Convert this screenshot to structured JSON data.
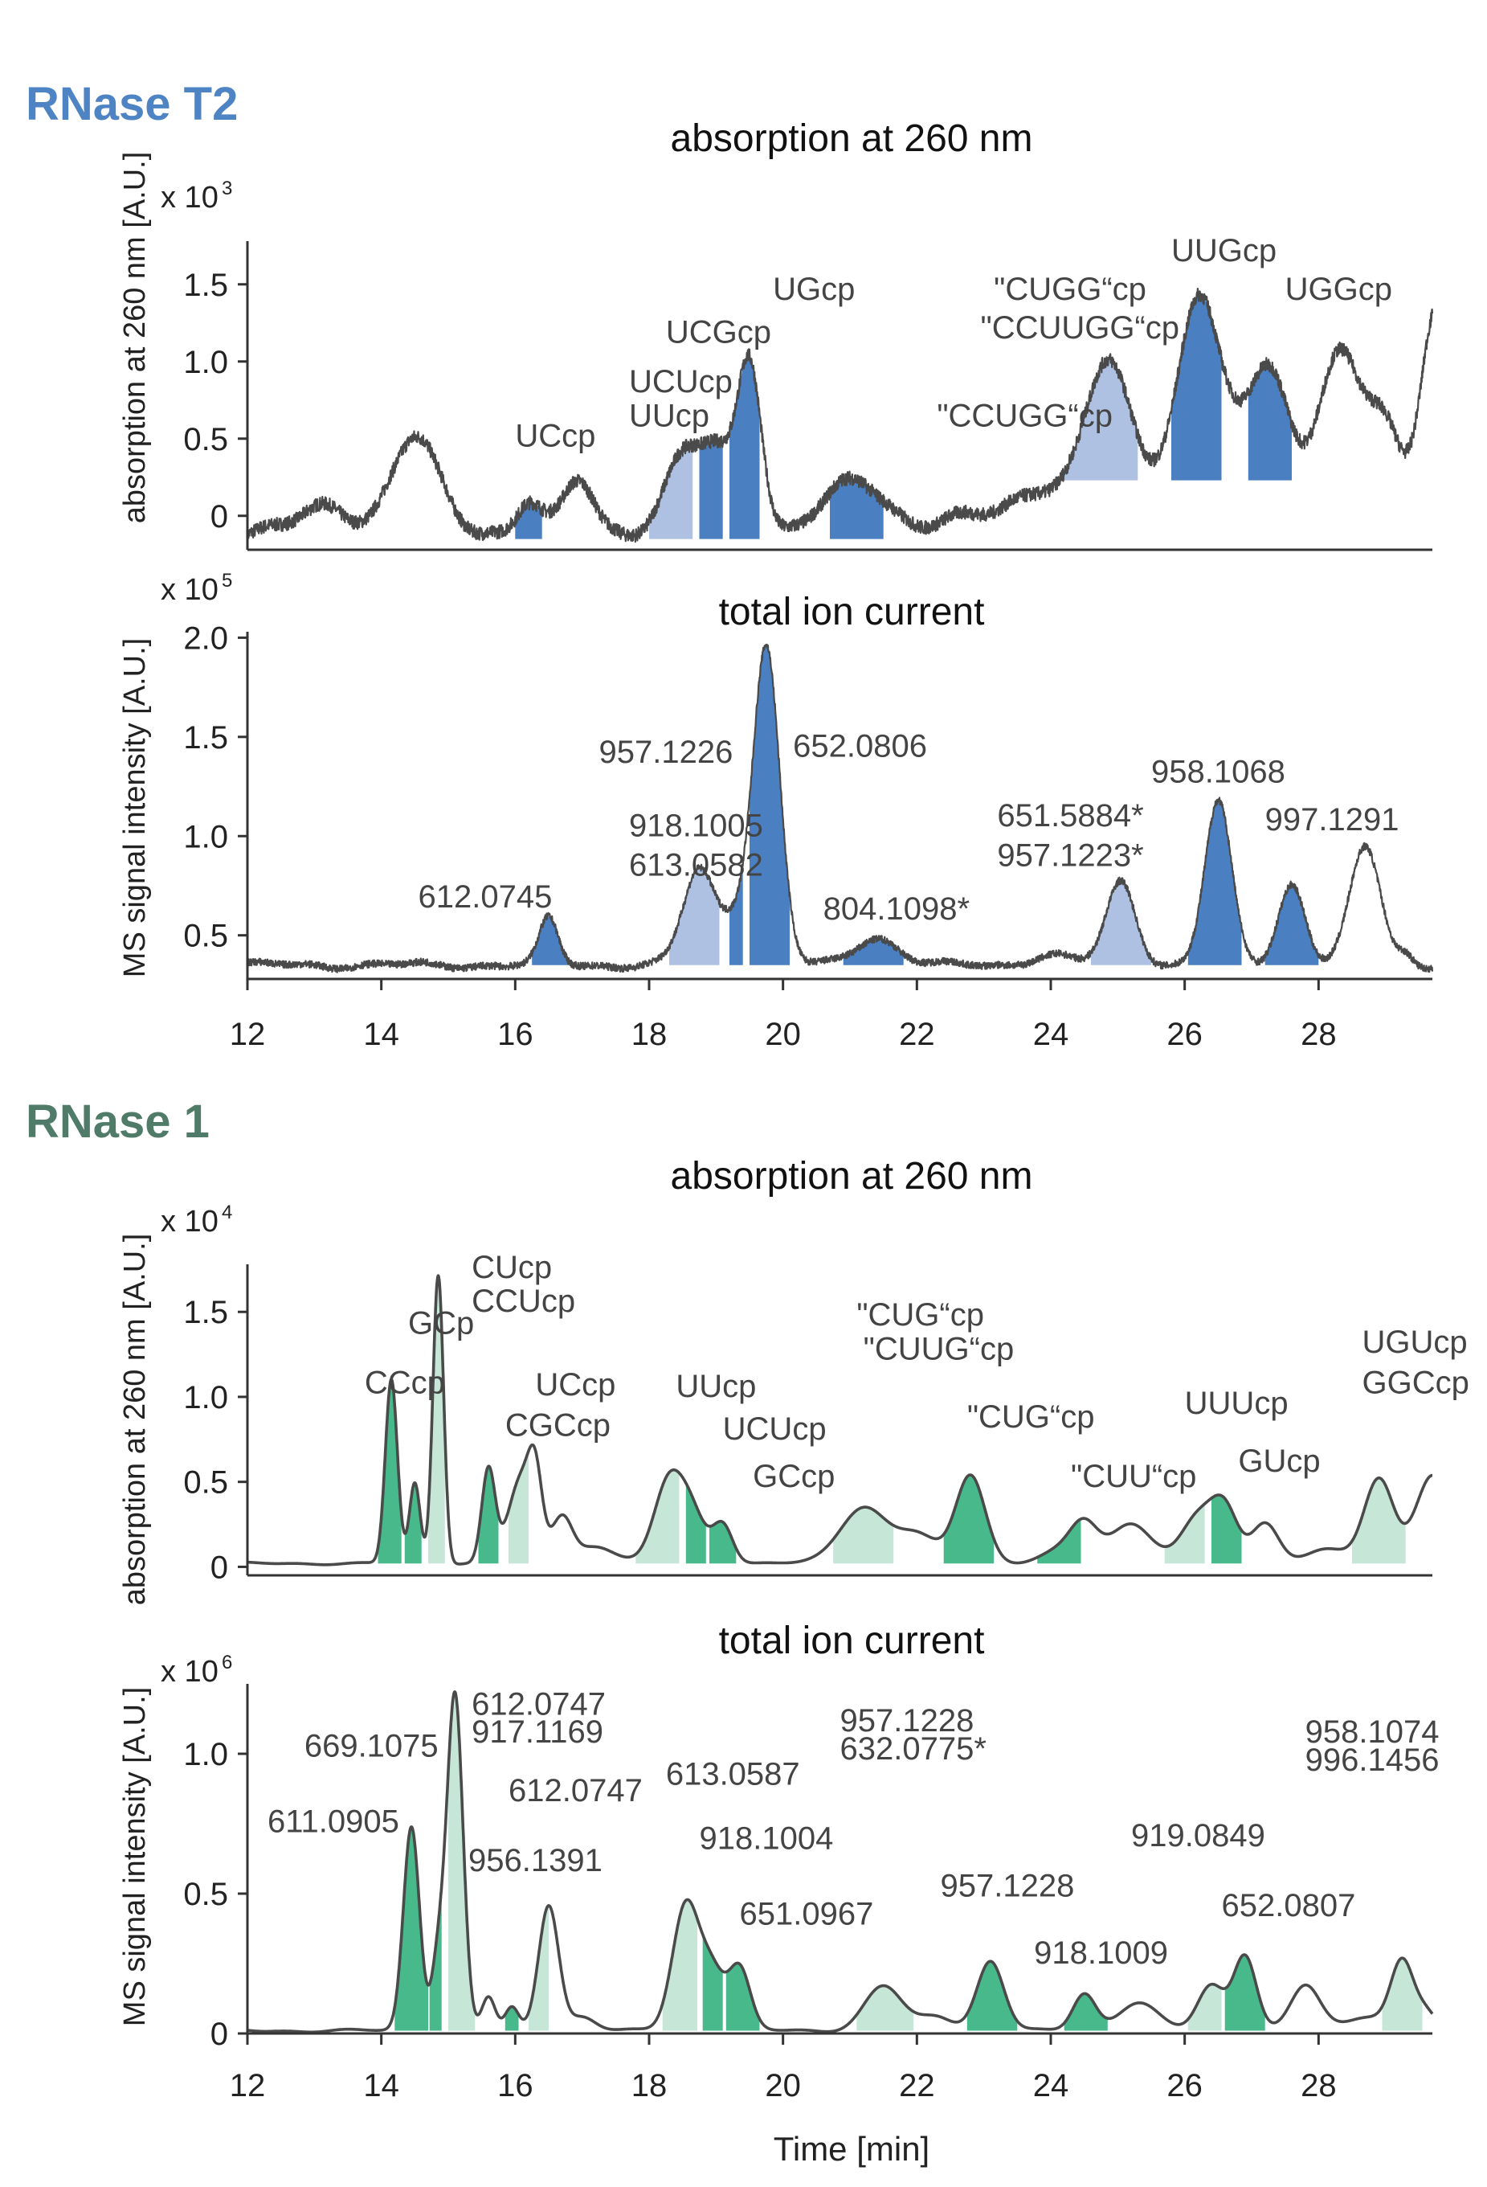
{
  "colors": {
    "t2_title": "#4f84c4",
    "t2_dark": "#4a7fc1",
    "t2_light": "#aec1e3",
    "r1_title": "#4f7b68",
    "r1_dark": "#48b98b",
    "r1_light": "#c6e6d8",
    "trace": "#4a4a4a",
    "axis": "#333333"
  },
  "sections": {
    "t2_title": "RNase T2",
    "r1_title": "RNase 1"
  },
  "xaxis": {
    "label": "Time [min]",
    "ticks": [
      12,
      14,
      16,
      18,
      20,
      22,
      24,
      26,
      28
    ],
    "range": [
      12,
      29.7
    ]
  },
  "chart_data": [
    {
      "type": "line",
      "title": "absorption at 260 nm",
      "ylabel": "absorption at 260 nm [A.U.]",
      "scale": "x 10",
      "scale_exp": "3",
      "ylim": [
        -0.22,
        1.78
      ],
      "yticks": [
        {
          "v": 0,
          "t": "0"
        },
        {
          "v": 0.5,
          "t": "0.5"
        },
        {
          "v": 1.0,
          "t": "1.0"
        },
        {
          "v": 1.5,
          "t": "1.5"
        }
      ],
      "baseline": -0.1,
      "noise": 0.045,
      "wiggle": 0.03,
      "peaks": [
        [
          13.2,
          0.16,
          0.35
        ],
        [
          14.5,
          0.6,
          0.35
        ],
        [
          16.2,
          0.2,
          0.18
        ],
        [
          16.95,
          0.32,
          0.22
        ],
        [
          18.55,
          0.5,
          0.3
        ],
        [
          19.05,
          0.38,
          0.22
        ],
        [
          19.5,
          1.12,
          0.18
        ],
        [
          21.1,
          0.32,
          0.45
        ],
        [
          22.8,
          0.08,
          0.5
        ],
        [
          23.7,
          0.2,
          0.35
        ],
        [
          24.1,
          0.12,
          0.3
        ],
        [
          24.85,
          1.08,
          0.35
        ],
        [
          25.6,
          0.18,
          0.3
        ],
        [
          26.2,
          1.35,
          0.32
        ],
        [
          26.7,
          0.35,
          0.4
        ],
        [
          27.3,
          0.95,
          0.3
        ],
        [
          28.3,
          1.18,
          0.32
        ],
        [
          29.0,
          0.65,
          0.25
        ],
        [
          29.75,
          1.45,
          0.22
        ]
      ],
      "regions": [
        [
          16.0,
          16.4,
          "dark",
          -0.15
        ],
        [
          18.0,
          18.65,
          "light",
          -0.15
        ],
        [
          18.75,
          19.1,
          "dark",
          -0.15
        ],
        [
          19.2,
          19.65,
          "dark",
          -0.15
        ],
        [
          20.7,
          21.5,
          "dark",
          -0.15
        ],
        [
          24.2,
          25.3,
          "light",
          0.23
        ],
        [
          25.8,
          26.55,
          "dark",
          0.23
        ],
        [
          26.95,
          27.6,
          "dark",
          0.23
        ]
      ],
      "annotations": [
        {
          "t": "UCcp",
          "x": 16.0,
          "y": 0.45
        },
        {
          "t": "UCUcp",
          "x": 17.7,
          "y": 0.8
        },
        {
          "t": "UUcp",
          "x": 17.7,
          "y": 0.58
        },
        {
          "t": "UCGcp",
          "x": 18.25,
          "y": 1.12
        },
        {
          "t": "UGcp",
          "x": 19.85,
          "y": 1.4
        },
        {
          "t": "\"CCUGG“cp",
          "x": 22.3,
          "y": 0.58
        },
        {
          "t": "\"CUGG“cp",
          "x": 23.15,
          "y": 1.4
        },
        {
          "t": "\"CCUUGG“cp",
          "x": 22.95,
          "y": 1.15
        },
        {
          "t": "UUGcp",
          "x": 25.8,
          "y": 1.65
        },
        {
          "t": "UGGcp",
          "x": 27.5,
          "y": 1.4
        }
      ]
    },
    {
      "type": "line",
      "title": "total ion current",
      "ylabel": "MS signal intensity [A.U.]",
      "scale": "x 10",
      "scale_exp": "5",
      "ylim": [
        0.28,
        2.03
      ],
      "yticks": [
        {
          "v": 0.5,
          "t": "0.5"
        },
        {
          "v": 1.0,
          "t": "1.0"
        },
        {
          "v": 1.5,
          "t": "1.5"
        },
        {
          "v": 2.0,
          "t": "2.0"
        }
      ],
      "baseline": 0.35,
      "noise": 0.018,
      "wiggle": 0.012,
      "peaks": [
        [
          16.5,
          0.23,
          0.14
        ],
        [
          18.75,
          0.48,
          0.24
        ],
        [
          19.3,
          0.2,
          0.2
        ],
        [
          19.75,
          1.6,
          0.2
        ],
        [
          21.4,
          0.14,
          0.32
        ],
        [
          24.0,
          0.05,
          0.3
        ],
        [
          25.05,
          0.42,
          0.22
        ],
        [
          26.5,
          0.82,
          0.2
        ],
        [
          27.6,
          0.41,
          0.2
        ],
        [
          28.7,
          0.59,
          0.23
        ],
        [
          29.3,
          0.05,
          0.1
        ]
      ],
      "regions": [
        [
          16.25,
          16.8,
          "dark",
          0.35
        ],
        [
          18.3,
          19.05,
          "light",
          0.35
        ],
        [
          19.2,
          19.4,
          "dark",
          0.35
        ],
        [
          19.5,
          20.1,
          "dark",
          0.35
        ],
        [
          20.9,
          21.8,
          "dark",
          0.35
        ],
        [
          24.6,
          25.5,
          "light",
          0.35
        ],
        [
          26.05,
          26.85,
          "dark",
          0.35
        ],
        [
          27.2,
          28.0,
          "dark",
          0.35
        ]
      ],
      "annotations": [
        {
          "t": "612.0745",
          "x": 14.55,
          "y": 0.64
        },
        {
          "t": "918.1005",
          "x": 17.7,
          "y": 1.0
        },
        {
          "t": "613.0582",
          "x": 17.7,
          "y": 0.8
        },
        {
          "t": "957.1226",
          "x": 17.25,
          "y": 1.37
        },
        {
          "t": "652.0806",
          "x": 20.15,
          "y": 1.4
        },
        {
          "t": "804.1098*",
          "x": 20.6,
          "y": 0.58
        },
        {
          "t": "651.5884*",
          "x": 23.2,
          "y": 1.05
        },
        {
          "t": "957.1223*",
          "x": 23.2,
          "y": 0.85
        },
        {
          "t": "958.1068",
          "x": 25.5,
          "y": 1.27
        },
        {
          "t": "997.1291",
          "x": 27.2,
          "y": 1.03
        }
      ]
    },
    {
      "type": "line",
      "title": "absorption at 260 nm",
      "ylabel": "absorption at 260 nm [A.U.]",
      "scale": "x 10",
      "scale_exp": "4",
      "ylim": [
        -0.05,
        1.78
      ],
      "yticks": [
        {
          "v": 0,
          "t": "0"
        },
        {
          "v": 0.5,
          "t": "0.5"
        },
        {
          "v": 1.0,
          "t": "1.0"
        },
        {
          "v": 1.5,
          "t": "1.5"
        }
      ],
      "baseline": 0.02,
      "noise": 0,
      "wiggle": 0.005,
      "peaks": [
        [
          14.15,
          1.08,
          0.09
        ],
        [
          14.5,
          0.47,
          0.08
        ],
        [
          14.85,
          1.7,
          0.08
        ],
        [
          15.6,
          0.55,
          0.1
        ],
        [
          16.1,
          0.5,
          0.2
        ],
        [
          16.3,
          0.35,
          0.1
        ],
        [
          16.7,
          0.26,
          0.15
        ],
        [
          17.2,
          0.1,
          0.3
        ],
        [
          18.3,
          0.48,
          0.22
        ],
        [
          18.65,
          0.25,
          0.2
        ],
        [
          19.1,
          0.23,
          0.15
        ],
        [
          21.2,
          0.33,
          0.35
        ],
        [
          22.0,
          0.16,
          0.3
        ],
        [
          22.8,
          0.52,
          0.22
        ],
        [
          24.2,
          0.08,
          0.3
        ],
        [
          24.5,
          0.2,
          0.2
        ],
        [
          25.2,
          0.24,
          0.3
        ],
        [
          26.2,
          0.27,
          0.25
        ],
        [
          26.6,
          0.3,
          0.2
        ],
        [
          27.2,
          0.24,
          0.2
        ],
        [
          28.1,
          0.08,
          0.3
        ],
        [
          28.9,
          0.5,
          0.22
        ],
        [
          29.7,
          0.52,
          0.25
        ]
      ],
      "regions": [
        [
          13.95,
          14.3,
          "dark",
          0.02
        ],
        [
          14.35,
          14.6,
          "dark",
          0.02
        ],
        [
          14.7,
          14.95,
          "light",
          0.02
        ],
        [
          15.45,
          15.75,
          "dark",
          0.02
        ],
        [
          15.9,
          16.2,
          "light",
          0.02
        ],
        [
          17.8,
          18.45,
          "light",
          0.02
        ],
        [
          18.55,
          18.85,
          "dark",
          0.02
        ],
        [
          18.9,
          19.3,
          "dark",
          0.02
        ],
        [
          20.75,
          21.65,
          "light",
          0.02
        ],
        [
          22.4,
          23.15,
          "dark",
          0.02
        ],
        [
          23.8,
          24.45,
          "dark",
          0.02
        ],
        [
          25.7,
          26.3,
          "light",
          0.02
        ],
        [
          26.4,
          26.85,
          "dark",
          0.02
        ],
        [
          28.5,
          29.3,
          "light",
          0.02
        ]
      ],
      "annotations": [
        {
          "t": "CCcp",
          "x": 13.75,
          "y": 1.02
        },
        {
          "t": "GCp",
          "x": 14.4,
          "y": 1.37
        },
        {
          "t": "CUcp",
          "x": 15.35,
          "y": 1.7
        },
        {
          "t": "CCUcp",
          "x": 15.35,
          "y": 1.5
        },
        {
          "t": "UCcp",
          "x": 16.3,
          "y": 1.01
        },
        {
          "t": "CGCcp",
          "x": 15.85,
          "y": 0.77
        },
        {
          "t": "UUcp",
          "x": 18.4,
          "y": 1.0
        },
        {
          "t": "UCUcp",
          "x": 19.1,
          "y": 0.75
        },
        {
          "t": "GCcp",
          "x": 19.55,
          "y": 0.47
        },
        {
          "t": "\"CUG“cp",
          "x": 21.1,
          "y": 1.42
        },
        {
          "t": "\"CUUG“cp",
          "x": 21.2,
          "y": 1.22
        },
        {
          "t": "\"CUG“cp",
          "x": 22.75,
          "y": 0.82
        },
        {
          "t": "\"CUU“cp",
          "x": 24.3,
          "y": 0.47
        },
        {
          "t": "UUUcp",
          "x": 26.0,
          "y": 0.9
        },
        {
          "t": "GUcp",
          "x": 26.8,
          "y": 0.56
        },
        {
          "t": "UGUcp",
          "x": 28.65,
          "y": 1.26
        },
        {
          "t": "GGCcp",
          "x": 28.65,
          "y": 1.02
        }
      ]
    },
    {
      "type": "line",
      "title": "total ion current",
      "ylabel": "MS signal intensity [A.U.]",
      "scale": "x 10",
      "scale_exp": "6",
      "ylim": [
        0,
        1.25
      ],
      "yticks": [
        {
          "v": 0,
          "t": "0"
        },
        {
          "v": 0.5,
          "t": "0.5"
        },
        {
          "v": 1.0,
          "t": "1.0"
        }
      ],
      "baseline": 0.01,
      "noise": 0,
      "wiggle": 0.004,
      "peaks": [
        [
          14.45,
          0.73,
          0.12
        ],
        [
          14.85,
          0.25,
          0.1
        ],
        [
          15.1,
          1.2,
          0.12
        ],
        [
          15.6,
          0.12,
          0.1
        ],
        [
          15.95,
          0.08,
          0.1
        ],
        [
          16.5,
          0.45,
          0.15
        ],
        [
          17.0,
          0.05,
          0.2
        ],
        [
          18.55,
          0.45,
          0.2
        ],
        [
          18.95,
          0.2,
          0.18
        ],
        [
          19.35,
          0.22,
          0.16
        ],
        [
          21.5,
          0.16,
          0.28
        ],
        [
          22.3,
          0.05,
          0.25
        ],
        [
          23.1,
          0.25,
          0.2
        ],
        [
          24.5,
          0.13,
          0.17
        ],
        [
          25.3,
          0.1,
          0.3
        ],
        [
          26.4,
          0.16,
          0.2
        ],
        [
          26.9,
          0.27,
          0.17
        ],
        [
          27.8,
          0.16,
          0.22
        ],
        [
          28.7,
          0.05,
          0.3
        ],
        [
          29.25,
          0.25,
          0.17
        ],
        [
          29.6,
          0.06,
          0.15
        ]
      ],
      "regions": [
        [
          14.2,
          14.7,
          "dark",
          0.01
        ],
        [
          14.72,
          14.9,
          "dark",
          0.01
        ],
        [
          15.0,
          15.4,
          "light",
          0.01
        ],
        [
          15.85,
          16.05,
          "dark",
          0.01
        ],
        [
          16.2,
          16.5,
          "light",
          0.01
        ],
        [
          18.2,
          18.72,
          "light",
          0.01
        ],
        [
          18.8,
          19.1,
          "dark",
          0.01
        ],
        [
          19.15,
          19.65,
          "dark",
          0.01
        ],
        [
          21.1,
          21.95,
          "light",
          0.01
        ],
        [
          22.75,
          23.5,
          "dark",
          0.01
        ],
        [
          24.2,
          24.85,
          "dark",
          0.01
        ],
        [
          26.05,
          26.55,
          "light",
          0.01
        ],
        [
          26.6,
          27.2,
          "dark",
          0.01
        ],
        [
          28.95,
          29.55,
          "light",
          0.01
        ]
      ],
      "annotations": [
        {
          "t": "611.0905",
          "x": 12.3,
          "y": 0.72
        },
        {
          "t": "669.1075",
          "x": 12.85,
          "y": 0.99
        },
        {
          "t": "612.0747",
          "x": 15.35,
          "y": 1.14
        },
        {
          "t": "917.1169",
          "x": 15.35,
          "y": 1.04
        },
        {
          "t": "612.0747",
          "x": 15.9,
          "y": 0.83
        },
        {
          "t": "956.1391",
          "x": 15.3,
          "y": 0.58
        },
        {
          "t": "613.0587",
          "x": 18.25,
          "y": 0.89
        },
        {
          "t": "918.1004",
          "x": 18.75,
          "y": 0.66
        },
        {
          "t": "651.0967",
          "x": 19.35,
          "y": 0.39
        },
        {
          "t": "957.1228",
          "x": 20.85,
          "y": 1.08
        },
        {
          "t": "632.0775*",
          "x": 20.85,
          "y": 0.98
        },
        {
          "t": "957.1228",
          "x": 22.35,
          "y": 0.49
        },
        {
          "t": "918.1009",
          "x": 23.75,
          "y": 0.25
        },
        {
          "t": "919.0849",
          "x": 25.2,
          "y": 0.67
        },
        {
          "t": "652.0807",
          "x": 26.55,
          "y": 0.42
        },
        {
          "t": "958.1074",
          "x": 27.8,
          "y": 1.04
        },
        {
          "t": "996.1456",
          "x": 27.8,
          "y": 0.94
        }
      ]
    }
  ]
}
